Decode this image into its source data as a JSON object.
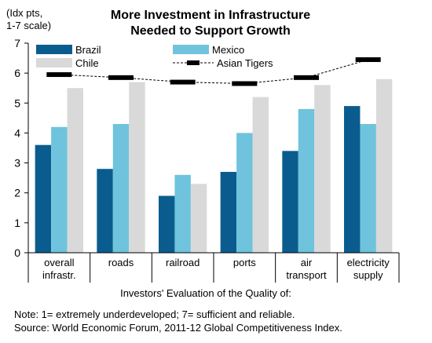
{
  "chart_data": {
    "type": "bar",
    "title": "More Investment in Infrastructure\nNeeded to Support Growth",
    "y_unit_label": "(Idx pts,\n1-7 scale)",
    "xlabel": "Investors' Evaluation of the Quality of:",
    "ylabel": "",
    "ylim": [
      0,
      7
    ],
    "yticks": [
      0,
      1,
      2,
      3,
      4,
      5,
      6,
      7
    ],
    "grid": false,
    "legend_position": "top",
    "categories": [
      "overall\ninfrastr.",
      "roads",
      "railroad",
      "ports",
      "air\ntransport",
      "electricity\nsupply"
    ],
    "series": [
      {
        "name": "Brazil",
        "color": "#0B5C8E",
        "values": [
          3.6,
          2.8,
          1.9,
          2.7,
          3.4,
          4.9
        ]
      },
      {
        "name": "Mexico",
        "color": "#6FC3DC",
        "values": [
          4.2,
          4.3,
          2.6,
          4.0,
          4.8,
          4.3
        ]
      },
      {
        "name": "Chile",
        "color": "#D9D9D9",
        "values": [
          5.5,
          5.7,
          2.3,
          5.2,
          5.6,
          5.8
        ]
      }
    ],
    "line_series": {
      "name": "Asian Tigers",
      "color": "#000000",
      "values": [
        5.95,
        5.85,
        5.7,
        5.65,
        5.85,
        6.45
      ]
    }
  },
  "notes": {
    "note": "Note: 1= extremely underdeveloped; 7= sufficient and reliable.",
    "source": "Source: World Economic Forum, 2011-12 Global Competitiveness Index."
  }
}
